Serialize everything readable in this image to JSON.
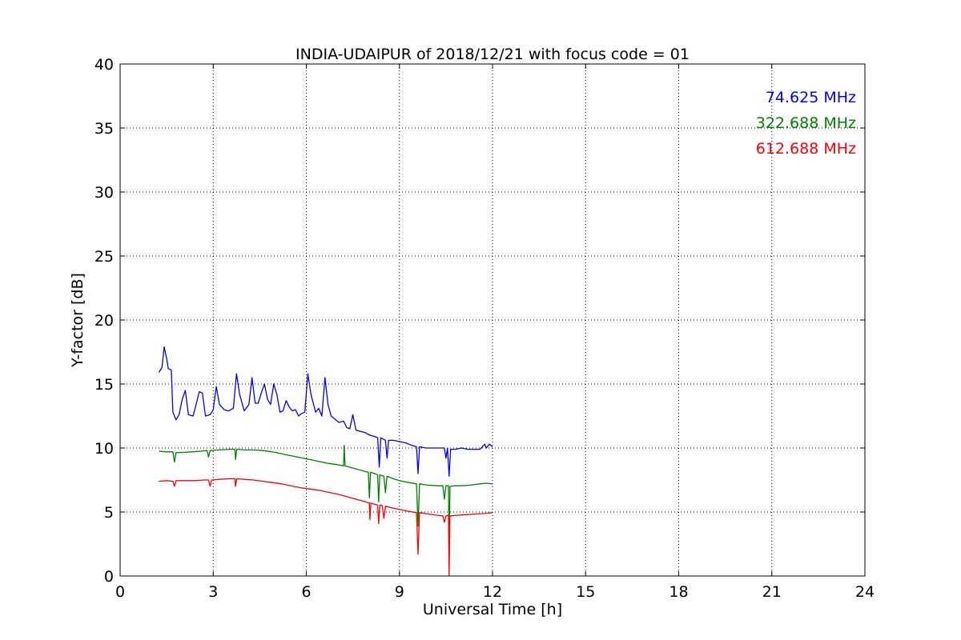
{
  "chart_data": {
    "type": "line",
    "title": "INDIA-UDAIPUR of 2018/12/21 with focus code = 01",
    "xlabel": "Universal Time [h]",
    "ylabel": "Y-factor [dB]",
    "xlim": [
      0,
      24
    ],
    "ylim": [
      0,
      40
    ],
    "xticks": [
      0,
      3,
      6,
      9,
      12,
      15,
      18,
      21,
      24
    ],
    "yticks": [
      0,
      5,
      10,
      15,
      20,
      25,
      30,
      35,
      40
    ],
    "grid": true,
    "legend_position": "top-right",
    "series": [
      {
        "name": "74.625 MHz",
        "color": "#0000ff",
        "points": [
          [
            1.25,
            15.9
          ],
          [
            1.35,
            16.3
          ],
          [
            1.42,
            17.9
          ],
          [
            1.5,
            17.0
          ],
          [
            1.55,
            16.2
          ],
          [
            1.65,
            16.1
          ],
          [
            1.7,
            12.8
          ],
          [
            1.8,
            12.2
          ],
          [
            1.9,
            12.6
          ],
          [
            2.0,
            13.8
          ],
          [
            2.1,
            14.5
          ],
          [
            2.2,
            12.6
          ],
          [
            2.35,
            12.5
          ],
          [
            2.45,
            13.4
          ],
          [
            2.55,
            14.4
          ],
          [
            2.65,
            14.3
          ],
          [
            2.75,
            12.5
          ],
          [
            2.9,
            12.6
          ],
          [
            3.0,
            13.0
          ],
          [
            3.1,
            14.8
          ],
          [
            3.2,
            13.4
          ],
          [
            3.35,
            13.0
          ],
          [
            3.5,
            12.9
          ],
          [
            3.65,
            13.1
          ],
          [
            3.75,
            15.8
          ],
          [
            3.85,
            14.2
          ],
          [
            4.0,
            12.9
          ],
          [
            4.15,
            13.4
          ],
          [
            4.25,
            15.5
          ],
          [
            4.35,
            13.5
          ],
          [
            4.45,
            13.5
          ],
          [
            4.55,
            14.3
          ],
          [
            4.65,
            15.0
          ],
          [
            4.75,
            13.8
          ],
          [
            4.85,
            13.4
          ],
          [
            4.95,
            15.0
          ],
          [
            5.05,
            14.2
          ],
          [
            5.15,
            12.8
          ],
          [
            5.25,
            12.9
          ],
          [
            5.35,
            13.7
          ],
          [
            5.45,
            13.2
          ],
          [
            5.55,
            12.9
          ],
          [
            5.65,
            13.0
          ],
          [
            5.75,
            12.5
          ],
          [
            5.85,
            12.7
          ],
          [
            5.95,
            12.8
          ],
          [
            6.05,
            15.8
          ],
          [
            6.15,
            14.2
          ],
          [
            6.3,
            12.8
          ],
          [
            6.4,
            13.1
          ],
          [
            6.5,
            12.5
          ],
          [
            6.6,
            15.5
          ],
          [
            6.7,
            13.4
          ],
          [
            6.8,
            12.5
          ],
          [
            6.95,
            12.2
          ],
          [
            7.05,
            12.0
          ],
          [
            7.2,
            12.1
          ],
          [
            7.3,
            11.6
          ],
          [
            7.4,
            11.5
          ],
          [
            7.5,
            12.6
          ],
          [
            7.6,
            11.4
          ],
          [
            7.75,
            11.3
          ],
          [
            7.9,
            11.2
          ],
          [
            8.05,
            11.0
          ],
          [
            8.2,
            10.9
          ],
          [
            8.3,
            10.8
          ],
          [
            8.35,
            8.5
          ],
          [
            8.4,
            10.8
          ],
          [
            8.55,
            10.6
          ],
          [
            8.6,
            9.2
          ],
          [
            8.65,
            10.6
          ],
          [
            8.8,
            10.6
          ],
          [
            9.0,
            10.5
          ],
          [
            9.2,
            10.4
          ],
          [
            9.4,
            10.2
          ],
          [
            9.55,
            10.1
          ],
          [
            9.6,
            8.0
          ],
          [
            9.65,
            10.1
          ],
          [
            9.85,
            10.0
          ],
          [
            10.1,
            10.0
          ],
          [
            10.3,
            10.0
          ],
          [
            10.45,
            10.0
          ],
          [
            10.5,
            9.2
          ],
          [
            10.55,
            10.0
          ],
          [
            10.6,
            7.8
          ],
          [
            10.65,
            9.9
          ],
          [
            10.8,
            9.9
          ],
          [
            11.0,
            10.0
          ],
          [
            11.2,
            9.9
          ],
          [
            11.4,
            9.9
          ],
          [
            11.6,
            9.9
          ],
          [
            11.75,
            10.3
          ],
          [
            11.8,
            10.0
          ],
          [
            11.9,
            10.3
          ],
          [
            12.0,
            10.1
          ]
        ]
      },
      {
        "name": "322.688 MHz",
        "color": "#008000",
        "points": [
          [
            1.25,
            9.75
          ],
          [
            1.5,
            9.7
          ],
          [
            1.7,
            9.7
          ],
          [
            1.75,
            8.9
          ],
          [
            1.8,
            9.65
          ],
          [
            2.0,
            9.65
          ],
          [
            2.3,
            9.7
          ],
          [
            2.6,
            9.75
          ],
          [
            2.8,
            9.8
          ],
          [
            2.85,
            9.3
          ],
          [
            2.9,
            9.8
          ],
          [
            3.2,
            9.85
          ],
          [
            3.5,
            9.9
          ],
          [
            3.7,
            9.9
          ],
          [
            3.72,
            9.1
          ],
          [
            3.76,
            9.9
          ],
          [
            4.0,
            9.85
          ],
          [
            4.3,
            9.85
          ],
          [
            4.6,
            9.8
          ],
          [
            4.9,
            9.7
          ],
          [
            5.2,
            9.55
          ],
          [
            5.5,
            9.4
          ],
          [
            5.8,
            9.25
          ],
          [
            6.1,
            9.1
          ],
          [
            6.4,
            8.95
          ],
          [
            6.7,
            8.8
          ],
          [
            7.0,
            8.7
          ],
          [
            7.2,
            8.6
          ],
          [
            7.22,
            10.2
          ],
          [
            7.25,
            8.6
          ],
          [
            7.4,
            8.5
          ],
          [
            7.7,
            8.3
          ],
          [
            8.0,
            8.1
          ],
          [
            8.03,
            6.1
          ],
          [
            8.07,
            8.1
          ],
          [
            8.2,
            8.0
          ],
          [
            8.3,
            7.9
          ],
          [
            8.33,
            5.8
          ],
          [
            8.37,
            7.9
          ],
          [
            8.5,
            7.8
          ],
          [
            8.55,
            6.5
          ],
          [
            8.6,
            7.8
          ],
          [
            8.8,
            7.6
          ],
          [
            9.0,
            7.45
          ],
          [
            9.3,
            7.3
          ],
          [
            9.55,
            7.2
          ],
          [
            9.6,
            3.9
          ],
          [
            9.65,
            7.2
          ],
          [
            9.9,
            7.1
          ],
          [
            10.2,
            7.05
          ],
          [
            10.4,
            7.05
          ],
          [
            10.45,
            6.0
          ],
          [
            10.5,
            7.05
          ],
          [
            10.58,
            7.05
          ],
          [
            10.6,
            2.0
          ],
          [
            10.63,
            7.0
          ],
          [
            10.8,
            7.05
          ],
          [
            11.0,
            7.05
          ],
          [
            11.3,
            7.1
          ],
          [
            11.6,
            7.2
          ],
          [
            11.8,
            7.25
          ],
          [
            12.0,
            7.2
          ]
        ]
      },
      {
        "name": "612.688 MHz",
        "color": "#ff0000",
        "points": [
          [
            1.25,
            7.4
          ],
          [
            1.5,
            7.45
          ],
          [
            1.7,
            7.4
          ],
          [
            1.75,
            7.0
          ],
          [
            1.8,
            7.45
          ],
          [
            2.1,
            7.45
          ],
          [
            2.4,
            7.45
          ],
          [
            2.7,
            7.5
          ],
          [
            2.85,
            7.5
          ],
          [
            2.9,
            7.0
          ],
          [
            2.95,
            7.5
          ],
          [
            3.2,
            7.55
          ],
          [
            3.5,
            7.6
          ],
          [
            3.7,
            7.6
          ],
          [
            3.72,
            7.0
          ],
          [
            3.76,
            7.6
          ],
          [
            4.0,
            7.55
          ],
          [
            4.3,
            7.5
          ],
          [
            4.6,
            7.4
          ],
          [
            4.9,
            7.3
          ],
          [
            5.2,
            7.2
          ],
          [
            5.5,
            7.05
          ],
          [
            5.8,
            6.9
          ],
          [
            6.1,
            6.8
          ],
          [
            6.4,
            6.7
          ],
          [
            6.7,
            6.55
          ],
          [
            7.0,
            6.4
          ],
          [
            7.3,
            6.2
          ],
          [
            7.6,
            6.0
          ],
          [
            7.9,
            5.8
          ],
          [
            8.03,
            5.7
          ],
          [
            8.05,
            4.4
          ],
          [
            8.08,
            5.7
          ],
          [
            8.2,
            5.6
          ],
          [
            8.3,
            5.55
          ],
          [
            8.33,
            4.1
          ],
          [
            8.37,
            5.55
          ],
          [
            8.45,
            5.5
          ],
          [
            8.5,
            4.5
          ],
          [
            8.55,
            5.45
          ],
          [
            8.8,
            5.3
          ],
          [
            9.0,
            5.2
          ],
          [
            9.3,
            5.05
          ],
          [
            9.55,
            4.95
          ],
          [
            9.6,
            1.7
          ],
          [
            9.65,
            4.95
          ],
          [
            9.9,
            4.85
          ],
          [
            10.2,
            4.75
          ],
          [
            10.4,
            4.7
          ],
          [
            10.45,
            4.2
          ],
          [
            10.5,
            4.7
          ],
          [
            10.58,
            4.75
          ],
          [
            10.6,
            0.0
          ],
          [
            10.63,
            4.7
          ],
          [
            10.9,
            4.75
          ],
          [
            11.2,
            4.8
          ],
          [
            11.5,
            4.85
          ],
          [
            11.8,
            4.9
          ],
          [
            12.0,
            4.95
          ]
        ]
      }
    ]
  }
}
